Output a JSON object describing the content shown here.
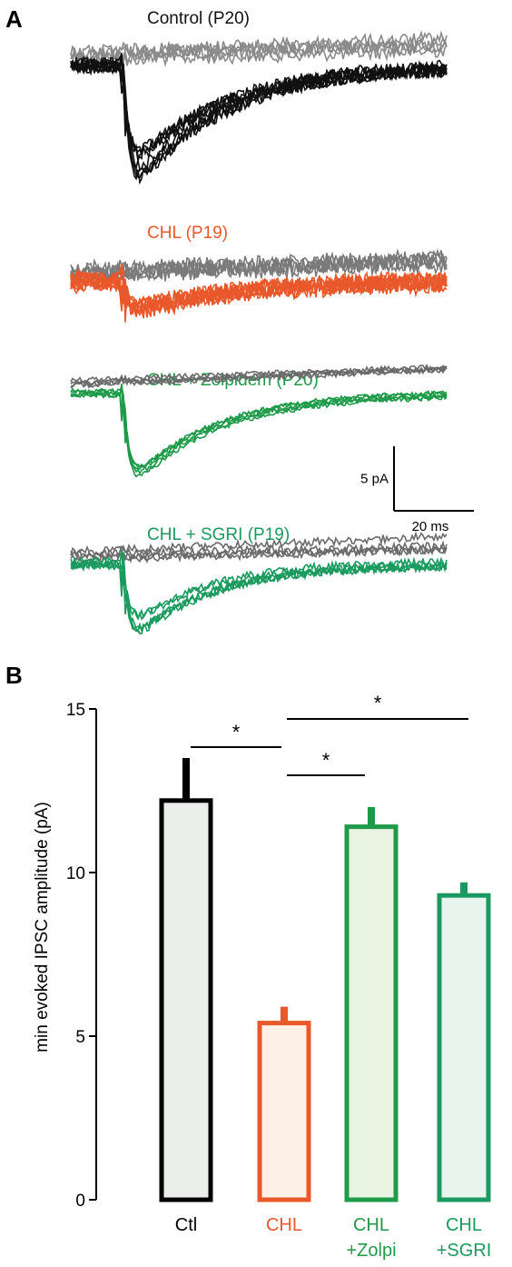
{
  "panel_a": {
    "label": "A",
    "traces": [
      {
        "title": "Control (P20)",
        "color": "#111111",
        "failure_color": "#8a8a8a",
        "peak_pA": 9.5,
        "decay_ms": 28,
        "noise": 1.2,
        "n_sweeps": 8,
        "n_failures": 5
      },
      {
        "title": "CHL (P19)",
        "color": "#e8582a",
        "failure_color": "#7a7a7a",
        "peak_pA": 2.5,
        "decay_ms": 30,
        "noise": 1.6,
        "n_sweeps": 8,
        "n_failures": 5
      },
      {
        "title": "CHL + Zolpidem  (P20)",
        "color": "#1c9a48",
        "failure_color": "#6a6a6a",
        "peak_pA": 7.8,
        "decay_ms": 26,
        "noise": 0.45,
        "n_sweeps": 5,
        "n_failures": 4
      },
      {
        "title": "CHL + SGRI (P19)",
        "color": "#1a9a5e",
        "failure_color": "#6a6a6a",
        "peak_pA": 5.8,
        "decay_ms": 24,
        "noise": 0.75,
        "n_sweeps": 5,
        "n_failures": 4
      }
    ],
    "scale_bar": {
      "y_label": "5 pA",
      "x_label": "20 ms",
      "y_value_pA": 5,
      "x_value_ms": 20
    }
  },
  "panel_b": {
    "label": "B"
  },
  "chart_data": {
    "type": "bar",
    "ylabel": "min evoked IPSC amplitude (pA)",
    "ylim": [
      0,
      15
    ],
    "yticks": [
      0,
      5,
      10,
      15
    ],
    "categories": [
      {
        "line1": "Ctl",
        "line2": ""
      },
      {
        "line1": "CHL",
        "line2": ""
      },
      {
        "line1": "CHL",
        "line2": "+Zolpi"
      },
      {
        "line1": "CHL",
        "line2": "+SGRI"
      }
    ],
    "values": [
      12.2,
      5.4,
      11.4,
      9.3
    ],
    "errors": [
      1.3,
      0.5,
      0.6,
      0.4
    ],
    "edge_colors": [
      "#000000",
      "#e8582a",
      "#1f9a48",
      "#1a9a60"
    ],
    "fill_colors": [
      "#eceeec",
      "#fdf0e6",
      "#e9f3e2",
      "#e8f4ee"
    ],
    "label_colors": [
      "#000000",
      "#e8582a",
      "#1f9a48",
      "#1a9a60"
    ],
    "significance": [
      {
        "from": 0,
        "to": 1,
        "label": "*"
      },
      {
        "from": 1,
        "to": 2,
        "label": "*"
      },
      {
        "from": 1,
        "to": 3,
        "label": "*"
      }
    ]
  }
}
